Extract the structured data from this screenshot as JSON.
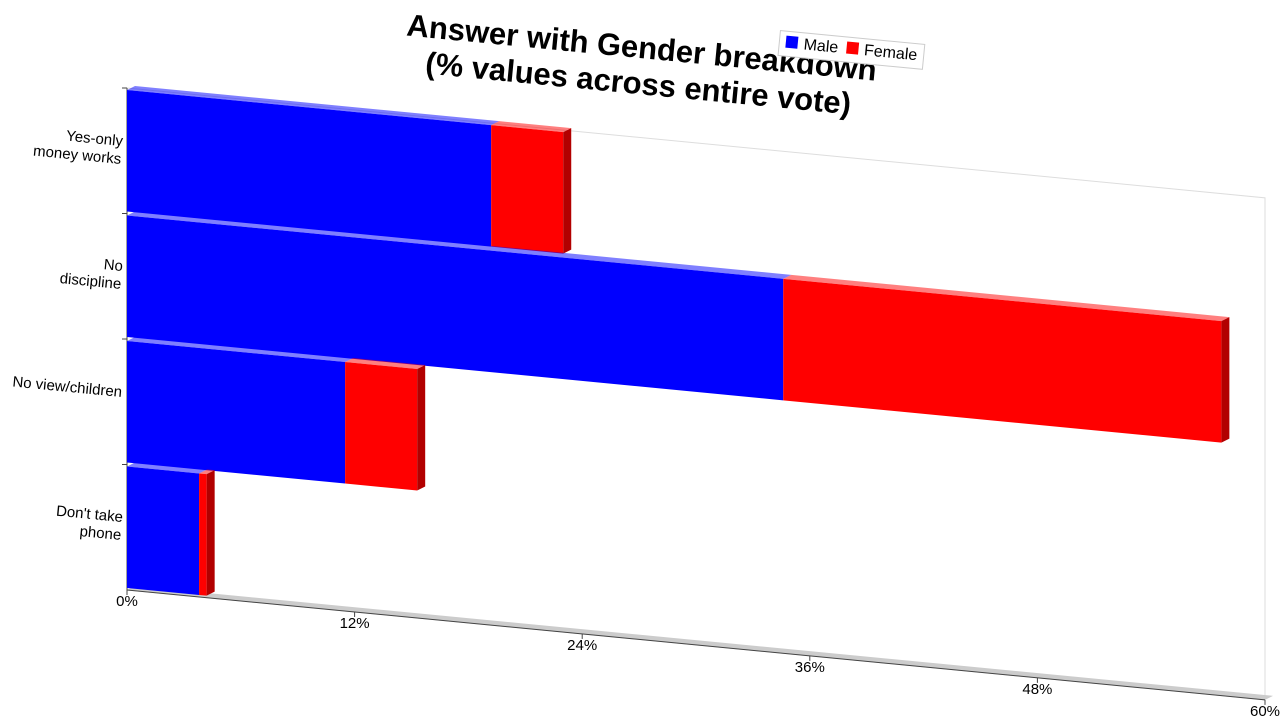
{
  "chart_data": {
    "type": "bar",
    "orientation": "horizontal",
    "stacked": true,
    "title": "Answer with Gender breakdown\n(% values across entire vote)",
    "categories": [
      "Yes-only\nmoney works",
      "No\ndiscipline",
      "No view/children",
      "Don't take\nphone"
    ],
    "series": [
      {
        "name": "Male",
        "color": "#0000ff",
        "values": [
          19.2,
          34.6,
          11.5,
          3.8
        ]
      },
      {
        "name": "Female",
        "color": "#ff0000",
        "values": [
          3.8,
          23.1,
          3.8,
          0.4
        ]
      }
    ],
    "xlim": [
      0,
      60
    ],
    "xticks": [
      {
        "value": 0,
        "label": "0%"
      },
      {
        "value": 12,
        "label": "12%"
      },
      {
        "value": 24,
        "label": "24%"
      },
      {
        "value": 36,
        "label": "36%"
      },
      {
        "value": 48,
        "label": "48%"
      },
      {
        "value": 60,
        "label": "60%"
      }
    ],
    "legend": "top"
  }
}
